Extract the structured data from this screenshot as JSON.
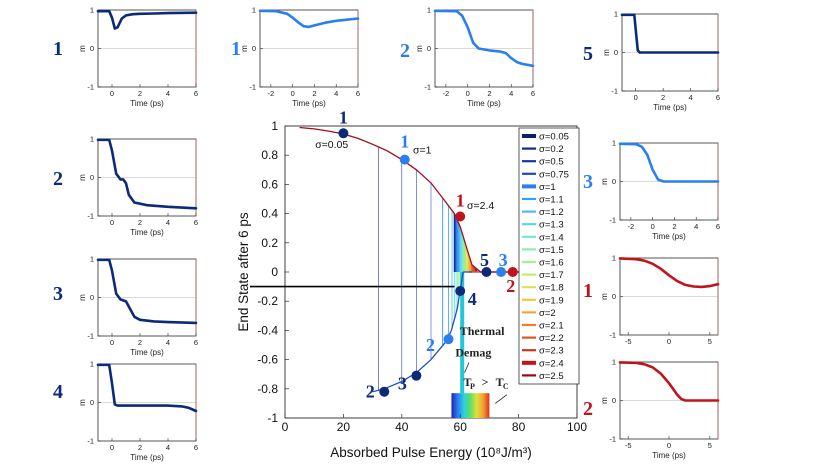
{
  "chart_data": {
    "type": "line",
    "main": {
      "xlabel": "Absorbed Pulse Energy (10⁸J/m³)",
      "ylabel": "End State after 6 ps",
      "xlim": [
        0,
        100
      ],
      "ylim": [
        -1,
        1
      ],
      "xticks": [
        0,
        20,
        40,
        60,
        80,
        100
      ],
      "yticks": [
        -1,
        -0.8,
        -0.6,
        -0.4,
        -0.2,
        0,
        0.2,
        0.4,
        0.6,
        0.8,
        1
      ],
      "upper_branch": {
        "x": [
          5,
          10,
          15,
          20,
          25,
          30,
          35,
          40,
          45,
          50,
          55,
          58,
          60,
          62,
          64,
          67,
          70,
          100
        ],
        "y": [
          0.99,
          0.98,
          0.965,
          0.945,
          0.915,
          0.875,
          0.83,
          0.77,
          0.7,
          0.61,
          0.48,
          0.4,
          0.31,
          0.18,
          0.05,
          0.0,
          0.0,
          0.0
        ]
      },
      "lower_branch": {
        "x": [
          30,
          34,
          40,
          45,
          50,
          55,
          57,
          59,
          61
        ],
        "y": [
          -0.82,
          -0.8,
          -0.75,
          -0.69,
          -0.6,
          -0.48,
          -0.4,
          -0.25,
          0.0
        ]
      },
      "threshold_line_y": -0.1,
      "points": [
        {
          "label": "1",
          "x": 20,
          "y": 0.95,
          "color": "#0c2a7a"
        },
        {
          "label": "1",
          "x": 41,
          "y": 0.77,
          "color": "#2a7ff0"
        },
        {
          "label": "1",
          "x": 60,
          "y": 0.38,
          "color": "#c0141c"
        },
        {
          "label": "2",
          "x": 34,
          "y": -0.82,
          "color": "#0c2a7a"
        },
        {
          "label": "3",
          "x": 45,
          "y": -0.71,
          "color": "#0c2a7a"
        },
        {
          "label": "2",
          "x": 56,
          "y": -0.46,
          "color": "#2a7ff0"
        },
        {
          "label": "4",
          "x": 60,
          "y": -0.13,
          "color": "#0c2a7a"
        },
        {
          "label": "5",
          "x": 69,
          "y": 0.0,
          "color": "#0c2a7a"
        },
        {
          "label": "3",
          "x": 74,
          "y": 0.0,
          "color": "#2a7ff0"
        },
        {
          "label": "2",
          "x": 78,
          "y": 0.0,
          "color": "#c0141c"
        }
      ],
      "point_labels": [
        "1",
        "1",
        "1",
        "2",
        "3",
        "2",
        "4",
        "5",
        "3",
        "2"
      ],
      "sigma_annotations": [
        "σ=0.05",
        "σ=1",
        "σ=2.4"
      ],
      "annotations": [
        "Thermal",
        "Demag",
        "T",
        "P",
        ">",
        "T",
        "C"
      ],
      "legend": {
        "position": "right",
        "entries": [
          "σ=0.05",
          "σ=0.2",
          "σ=0.5",
          "σ=0.75",
          "σ=1",
          "σ=1.1",
          "σ=1.2",
          "σ=1.3",
          "σ=1.4",
          "σ=1.5",
          "σ=1.6",
          "σ=1.7",
          "σ=1.8",
          "σ=1.9",
          "σ=2",
          "σ=2.1",
          "σ=2.2",
          "σ=2.3",
          "σ=2.4",
          "σ=2.5"
        ],
        "colors": [
          "#0a1e6e",
          "#0f2b8c",
          "#1437a8",
          "#1a47c6",
          "#2a7ff0",
          "#3aa0f4",
          "#4cbcf2",
          "#5dd4ea",
          "#6fe6d8",
          "#86efb6",
          "#a3f08e",
          "#c3ec6a",
          "#e0e052",
          "#f2c93e",
          "#f7a532",
          "#f27e28",
          "#e6551f",
          "#d23418",
          "#c0141c",
          "#8e0c10"
        ]
      }
    },
    "insets": [
      {
        "id": "L1",
        "label": "1",
        "xlabel": "Time (ps)",
        "ylabel": "m",
        "xticks": [
          0,
          2,
          4,
          6
        ],
        "yticks": [
          -1,
          0,
          1
        ],
        "xlim": [
          -1,
          6
        ],
        "color": "#0c2a7a",
        "t": [
          -1,
          -0.2,
          0,
          0.2,
          0.4,
          0.7,
          1,
          1.5,
          2,
          3,
          4,
          6
        ],
        "m": [
          0.97,
          0.97,
          0.8,
          0.52,
          0.55,
          0.78,
          0.86,
          0.89,
          0.9,
          0.91,
          0.92,
          0.93
        ]
      },
      {
        "id": "L2",
        "label": "2",
        "xlabel": "Time (ps)",
        "ylabel": "m",
        "xticks": [
          0,
          2,
          4,
          6
        ],
        "yticks": [
          -1,
          0,
          1
        ],
        "xlim": [
          -1,
          6
        ],
        "color": "#0c2a7a",
        "t": [
          -1,
          -0.2,
          0,
          0.3,
          0.6,
          0.8,
          1,
          1.2,
          1.6,
          2.5,
          4,
          6
        ],
        "m": [
          0.98,
          0.98,
          0.7,
          0.1,
          -0.05,
          -0.05,
          -0.15,
          -0.45,
          -0.65,
          -0.72,
          -0.76,
          -0.8
        ]
      },
      {
        "id": "L3",
        "label": "3",
        "xlabel": "Time (ps)",
        "ylabel": "m",
        "xticks": [
          0,
          2,
          4,
          6
        ],
        "yticks": [
          -1,
          0,
          1
        ],
        "xlim": [
          -1,
          6
        ],
        "color": "#0c2a7a",
        "t": [
          -1,
          -0.2,
          0,
          0.3,
          0.6,
          1,
          1.3,
          1.6,
          2,
          3,
          4,
          6
        ],
        "m": [
          0.98,
          0.98,
          0.7,
          0.1,
          -0.05,
          -0.1,
          -0.3,
          -0.5,
          -0.58,
          -0.62,
          -0.64,
          -0.66
        ]
      },
      {
        "id": "L4",
        "label": "4",
        "xlabel": "Time (ps)",
        "ylabel": "m",
        "xticks": [
          0,
          2,
          4,
          6
        ],
        "yticks": [
          -1,
          0,
          1
        ],
        "xlim": [
          -1,
          6
        ],
        "color": "#0c2a7a",
        "t": [
          -1,
          -0.2,
          0,
          0.2,
          0.4,
          1,
          2,
          3,
          4,
          5,
          5.5,
          6
        ],
        "m": [
          0.98,
          0.98,
          0.5,
          -0.05,
          -0.08,
          -0.08,
          -0.08,
          -0.08,
          -0.08,
          -0.1,
          -0.14,
          -0.22
        ]
      },
      {
        "id": "T1",
        "label": "1",
        "xlabel": "Time (ps)",
        "ylabel": "m",
        "xticks": [
          -2,
          0,
          2,
          4,
          6
        ],
        "yticks": [
          -1,
          0,
          1
        ],
        "xlim": [
          -3,
          6
        ],
        "color": "#2a7ff0",
        "t": [
          -3,
          -1.5,
          -0.5,
          0,
          0.5,
          1,
          1.5,
          2,
          3,
          4,
          6
        ],
        "m": [
          0.98,
          0.97,
          0.9,
          0.8,
          0.68,
          0.58,
          0.56,
          0.6,
          0.67,
          0.72,
          0.78
        ]
      },
      {
        "id": "T2",
        "label": "2",
        "xlabel": "Time (ps)",
        "ylabel": "m",
        "xticks": [
          -2,
          0,
          2,
          4,
          6
        ],
        "yticks": [
          -1,
          0,
          1
        ],
        "xlim": [
          -3,
          6
        ],
        "color": "#2a7ff0",
        "t": [
          -3,
          -1,
          -0.5,
          0,
          0.5,
          1,
          2,
          3,
          3.5,
          4,
          4.5,
          5,
          6
        ],
        "m": [
          0.98,
          0.97,
          0.85,
          0.55,
          0.15,
          0.0,
          -0.05,
          -0.08,
          -0.12,
          -0.25,
          -0.35,
          -0.4,
          -0.45
        ]
      },
      {
        "id": "T5",
        "label": "5",
        "xlabel": "Time (ps)",
        "ylabel": "m",
        "xticks": [
          0,
          2,
          4,
          6
        ],
        "yticks": [
          -1,
          0,
          1
        ],
        "xlim": [
          -1,
          6
        ],
        "color": "#0c2a7a",
        "t": [
          -1,
          -0.1,
          0,
          0.15,
          0.3,
          1,
          2,
          4,
          6
        ],
        "m": [
          0.98,
          0.98,
          0.6,
          0.05,
          0.0,
          0.0,
          0.0,
          0.0,
          0.0
        ]
      },
      {
        "id": "R3",
        "label": "3",
        "xlabel": "Time (ps)",
        "ylabel": "m",
        "xticks": [
          -2,
          0,
          2,
          4,
          6
        ],
        "yticks": [
          -1,
          0,
          1
        ],
        "xlim": [
          -3,
          6
        ],
        "color": "#2a7ff0",
        "t": [
          -3,
          -1.5,
          -1,
          -0.5,
          0,
          0.5,
          1,
          2,
          4,
          6
        ],
        "m": [
          0.98,
          0.97,
          0.9,
          0.7,
          0.3,
          0.05,
          0.0,
          0.0,
          0.0,
          0.0
        ]
      },
      {
        "id": "R1",
        "label": "1",
        "xlabel": "",
        "ylabel": "m",
        "xticks": [
          -5,
          0,
          5
        ],
        "yticks": [
          -1,
          0,
          1
        ],
        "xlim": [
          -6,
          6
        ],
        "color": "#c0141c",
        "t": [
          -6,
          -4,
          -3,
          -2,
          -1,
          0,
          1,
          2,
          3,
          4,
          5,
          6
        ],
        "m": [
          0.99,
          0.97,
          0.93,
          0.85,
          0.72,
          0.55,
          0.4,
          0.3,
          0.26,
          0.25,
          0.27,
          0.32
        ]
      },
      {
        "id": "R2",
        "label": "2",
        "xlabel": "Time (ps)",
        "ylabel": "m",
        "xticks": [
          -5,
          0,
          5
        ],
        "yticks": [
          -1,
          0,
          1
        ],
        "xlim": [
          -6,
          6
        ],
        "color": "#c0141c",
        "t": [
          -6,
          -4,
          -3,
          -2,
          -1,
          0,
          0.5,
          1,
          1.5,
          2,
          3,
          6
        ],
        "m": [
          0.99,
          0.98,
          0.94,
          0.86,
          0.7,
          0.45,
          0.3,
          0.15,
          0.04,
          0.0,
          0.0,
          0.0
        ]
      }
    ]
  }
}
